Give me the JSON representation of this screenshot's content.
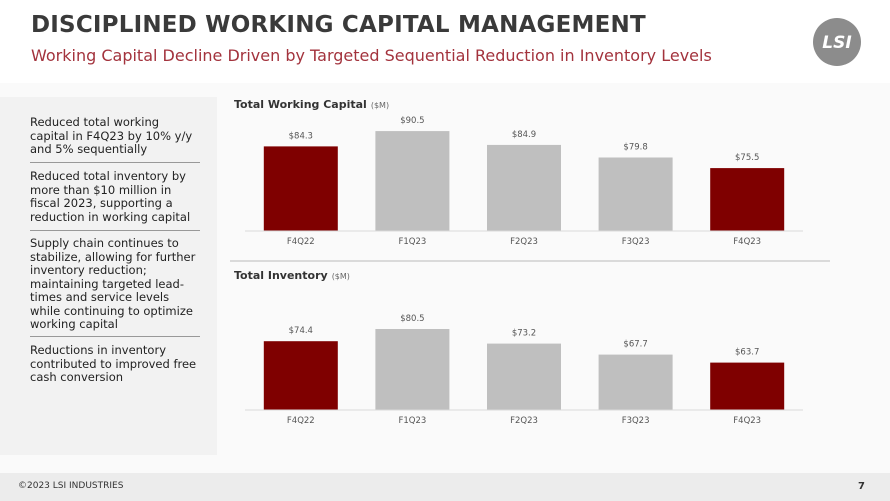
{
  "header": {
    "title": "DISCIPLINED WORKING CAPITAL MANAGEMENT",
    "subtitle": "Working Capital Decline Driven by Targeted Sequential Reduction in Inventory Levels",
    "logo": "LSI"
  },
  "bullets": [
    "Reduced total working capital in F4Q23 by 10% y/y and 5% sequentially",
    "Reduced total inventory by more than $10 million in fiscal 2023, supporting a reduction in working capital",
    "Supply chain continues to stabilize, allowing for further inventory reduction; maintaining targeted lead-times and service levels while continuing to optimize working capital",
    "Reductions in inventory contributed to improved free cash conversion"
  ],
  "footer": {
    "copyright": "©2023 LSI INDUSTRIES",
    "page": "7"
  },
  "chart_data": [
    {
      "type": "bar",
      "title": "Total Working Capital",
      "unit": "($M)",
      "categories": [
        "F4Q22",
        "F1Q23",
        "F2Q23",
        "F3Q23",
        "F4Q23"
      ],
      "values": [
        84.3,
        90.5,
        84.9,
        79.8,
        75.5
      ],
      "value_labels": [
        "$84.3",
        "$90.5",
        "$84.9",
        "$79.8",
        "$75.5"
      ],
      "colors": [
        "#7f0000",
        "#bfbfbf",
        "#bfbfbf",
        "#bfbfbf",
        "#7f0000"
      ],
      "ylim": [
        50,
        95
      ]
    },
    {
      "type": "bar",
      "title": "Total Inventory",
      "unit": "($M)",
      "categories": [
        "F4Q22",
        "F1Q23",
        "F2Q23",
        "F3Q23",
        "F4Q23"
      ],
      "values": [
        74.4,
        80.5,
        73.2,
        67.7,
        63.7
      ],
      "value_labels": [
        "$74.4",
        "$80.5",
        "$73.2",
        "$67.7",
        "$63.7"
      ],
      "colors": [
        "#7f0000",
        "#bfbfbf",
        "#bfbfbf",
        "#bfbfbf",
        "#7f0000"
      ],
      "ylim": [
        40,
        85
      ]
    }
  ]
}
